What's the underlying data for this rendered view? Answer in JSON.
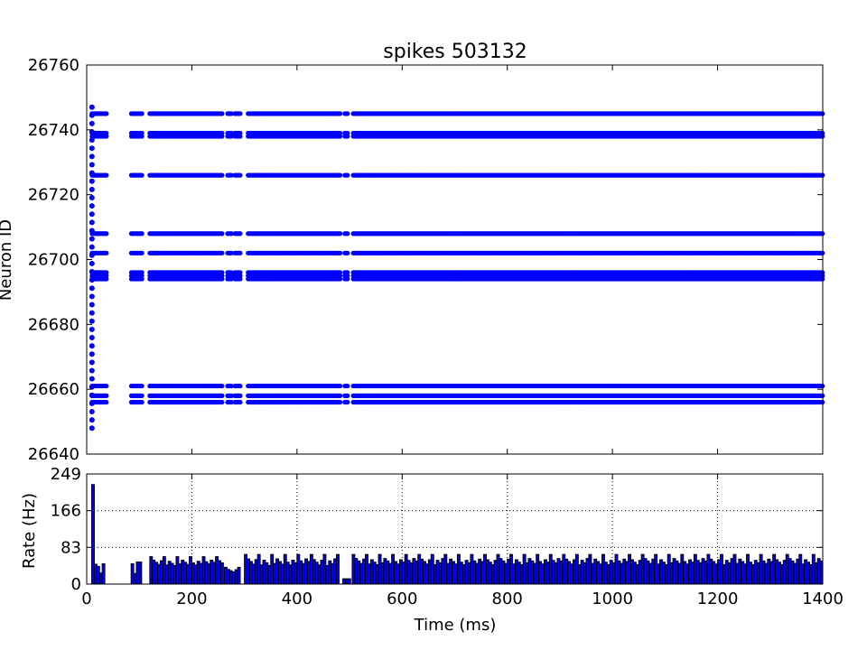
{
  "chart_data": [
    {
      "type": "scatter",
      "title": "spikes 503132",
      "xlabel": "",
      "ylabel": "Neuron ID",
      "xlim": [
        0,
        1400
      ],
      "ylim": [
        26640,
        26760
      ],
      "yticks": [
        26640,
        26660,
        26680,
        26700,
        26720,
        26740,
        26760
      ],
      "xticks": [
        0,
        200,
        400,
        600,
        800,
        1000,
        1200,
        1400
      ],
      "show_x_tick_labels": false,
      "grid": false,
      "marker_color": "#0000ff",
      "initial_burst": {
        "x": 10,
        "y_range": [
          26648,
          26747
        ],
        "count": 40
      },
      "neuron_rows": [
        26745,
        26739,
        26738,
        26726,
        26708,
        26702,
        26696,
        26695,
        26694,
        26661,
        26658,
        26656
      ],
      "active_time_segments": [
        [
          10,
          38
        ],
        [
          85,
          105
        ],
        [
          120,
          258
        ],
        [
          268,
          277
        ],
        [
          282,
          292
        ],
        [
          307,
          482
        ],
        [
          491,
          497
        ],
        [
          507,
          1400
        ]
      ]
    },
    {
      "type": "bar",
      "title": "",
      "xlabel": "Time (ms)",
      "ylabel": "Rate (Hz)",
      "xlim": [
        0,
        1400
      ],
      "ylim": [
        0,
        249
      ],
      "yticks": [
        0,
        83,
        166,
        249
      ],
      "xticks": [
        0,
        200,
        400,
        600,
        800,
        1000,
        1200,
        1400
      ],
      "grid": true,
      "bar_color": "#0000ff",
      "bin_width": 5,
      "rates": [
        {
          "x": 12,
          "value": 225
        },
        {
          "x": 17,
          "value": 45
        },
        {
          "x": 22,
          "value": 40
        },
        {
          "x": 27,
          "value": 25
        },
        {
          "x": 32,
          "value": 46
        },
        {
          "x": 87,
          "value": 46
        },
        {
          "x": 92,
          "value": 24
        },
        {
          "x": 97,
          "value": 50
        },
        {
          "x": 102,
          "value": 50
        }
      ],
      "active_fill": [
        {
          "range": [
            120,
            258
          ],
          "low": 42,
          "high": 62
        },
        {
          "range": [
            262,
            292
          ],
          "low": 26,
          "high": 38
        },
        {
          "range": [
            300,
            482
          ],
          "low": 42,
          "high": 67
        },
        {
          "range": [
            487,
            500
          ],
          "low": 12,
          "high": 12
        },
        {
          "range": [
            505,
            1400
          ],
          "low": 44,
          "high": 67
        }
      ]
    }
  ],
  "x_tick_labels": [
    "0",
    "200",
    "400",
    "600",
    "800",
    "1000",
    "1200",
    "1400"
  ],
  "spike_y_tick_labels": [
    "26640",
    "26660",
    "26680",
    "26700",
    "26720",
    "26740",
    "26760"
  ],
  "rate_y_tick_labels": [
    "0",
    "83",
    "166",
    "249"
  ]
}
